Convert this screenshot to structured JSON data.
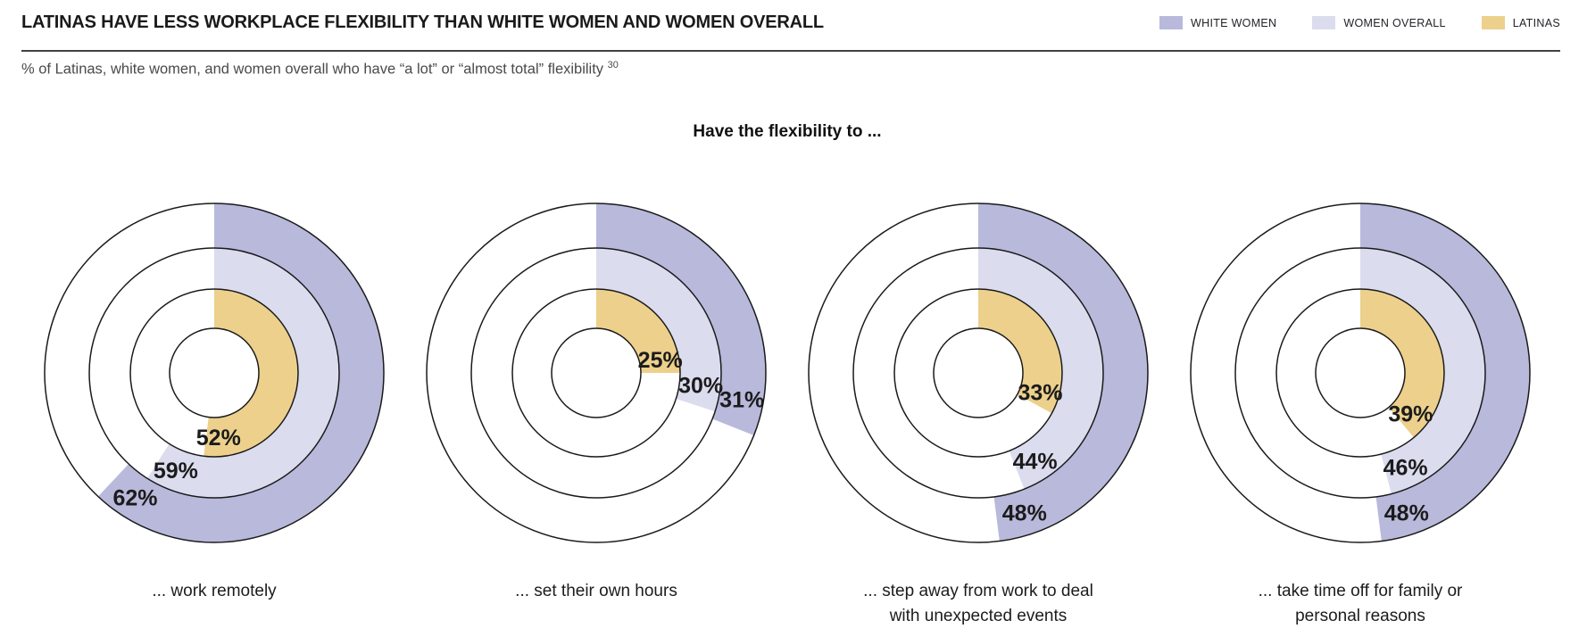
{
  "header": {
    "title": "LATINAS HAVE LESS WORKPLACE FLEXIBILITY THAN WHITE WOMEN AND WOMEN OVERALL",
    "subtitle": "% of Latinas, white women, and women overall who have “a lot” or “almost total” flexibility",
    "footnote_marker": "30"
  },
  "legend": [
    {
      "label": "WHITE WOMEN",
      "color": "#b8b9db"
    },
    {
      "label": "WOMEN OVERALL",
      "color": "#dbdcee"
    },
    {
      "label": "LATINAS",
      "color": "#ecd08c"
    }
  ],
  "center_heading": "Have the flexibility to ...",
  "chart_data": {
    "type": "concentric_donut",
    "title": "Have the flexibility to ...",
    "unit": "%",
    "start_angle_deg": 0,
    "direction": "clockwise",
    "outline_color": "#1a1a1a",
    "categories": [
      "... work remotely",
      "... set their own hours",
      "... step away from work to deal\nwith unexpected events",
      "... take time off for family or\npersonal reasons"
    ],
    "series": [
      {
        "name": "WHITE WOMEN",
        "ring": "outer",
        "color": "#b8b9db",
        "values": [
          62,
          31,
          48,
          48
        ]
      },
      {
        "name": "WOMEN OVERALL",
        "ring": "middle",
        "color": "#dbdcee",
        "values": [
          59,
          30,
          44,
          46
        ]
      },
      {
        "name": "LATINAS",
        "ring": "inner",
        "color": "#ecd08c",
        "values": [
          52,
          25,
          33,
          39
        ]
      }
    ]
  }
}
